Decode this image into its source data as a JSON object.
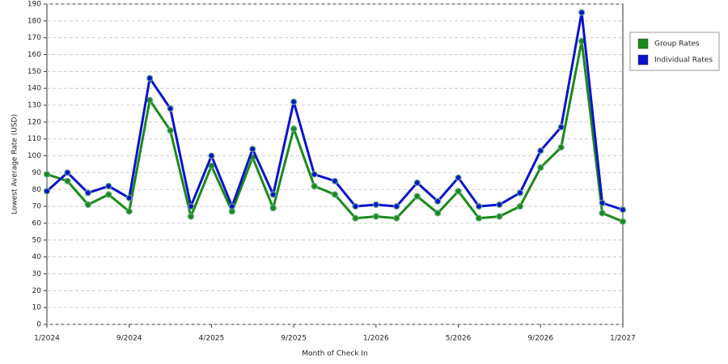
{
  "chart_data": {
    "type": "line",
    "x_label": "Month of Check In",
    "y_label": "Lowest Average Rate (USD)",
    "categories": [
      "1/2024",
      null,
      null,
      null,
      "9/2024",
      null,
      null,
      null,
      "4/2025",
      null,
      null,
      null,
      "9/2025",
      null,
      null,
      null,
      "1/2026",
      null,
      null,
      null,
      "5/2026",
      null,
      null,
      null,
      "9/2026",
      null,
      null,
      null,
      "1/2027"
    ],
    "series": [
      {
        "name": "Group Rates",
        "color": "#1a8a1a",
        "values": [
          89,
          85,
          71,
          77,
          67,
          133,
          115,
          64,
          94,
          67,
          99,
          69,
          116,
          82,
          77,
          63,
          64,
          63,
          76,
          66,
          79,
          63,
          64,
          70,
          93,
          105,
          168,
          66,
          61
        ]
      },
      {
        "name": "Individual Rates",
        "color": "#0a14cc",
        "values": [
          79,
          90,
          78,
          82,
          75,
          146,
          128,
          70,
          100,
          70,
          104,
          77,
          132,
          89,
          85,
          70,
          71,
          70,
          84,
          73,
          87,
          70,
          71,
          78,
          103,
          117,
          185,
          72,
          68
        ]
      }
    ],
    "ylim": [
      0,
      190
    ],
    "yticks": [
      0,
      10,
      20,
      30,
      40,
      50,
      60,
      70,
      80,
      90,
      100,
      110,
      120,
      130,
      140,
      150,
      160,
      170,
      180,
      190
    ],
    "grid": true,
    "legend": "right"
  }
}
